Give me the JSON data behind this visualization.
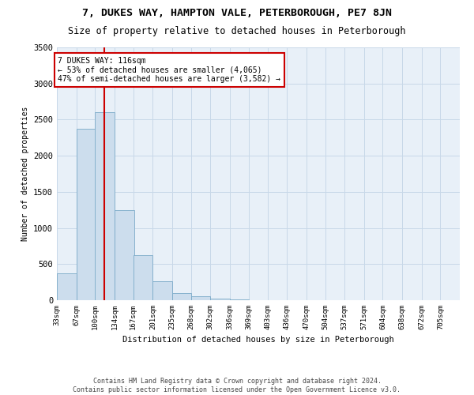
{
  "title": "7, DUKES WAY, HAMPTON VALE, PETERBOROUGH, PE7 8JN",
  "subtitle": "Size of property relative to detached houses in Peterborough",
  "xlabel": "Distribution of detached houses by size in Peterborough",
  "ylabel": "Number of detached properties",
  "bar_color": "#ccdded",
  "bar_edge_color": "#7aaac8",
  "vline_x": 116,
  "vline_color": "#cc0000",
  "annotation_text": "7 DUKES WAY: 116sqm\n← 53% of detached houses are smaller (4,065)\n47% of semi-detached houses are larger (3,582) →",
  "annotation_box_color": "#cc0000",
  "bins": [
    33,
    67,
    100,
    134,
    167,
    201,
    235,
    268,
    302,
    336,
    369,
    403,
    436,
    470,
    504,
    537,
    571,
    604,
    638,
    672,
    705
  ],
  "bar_heights": [
    375,
    2375,
    2600,
    1250,
    625,
    260,
    100,
    50,
    25,
    10,
    5,
    3,
    2,
    2,
    1,
    1,
    1,
    1,
    1,
    1
  ],
  "ylim": [
    0,
    3500
  ],
  "yticks": [
    0,
    500,
    1000,
    1500,
    2000,
    2500,
    3000,
    3500
  ],
  "footer": "Contains HM Land Registry data © Crown copyright and database right 2024.\nContains public sector information licensed under the Open Government Licence v3.0.",
  "bg_color": "#ffffff",
  "grid_color": "#c8d8e8",
  "title_fontsize": 9.5,
  "subtitle_fontsize": 8.5
}
